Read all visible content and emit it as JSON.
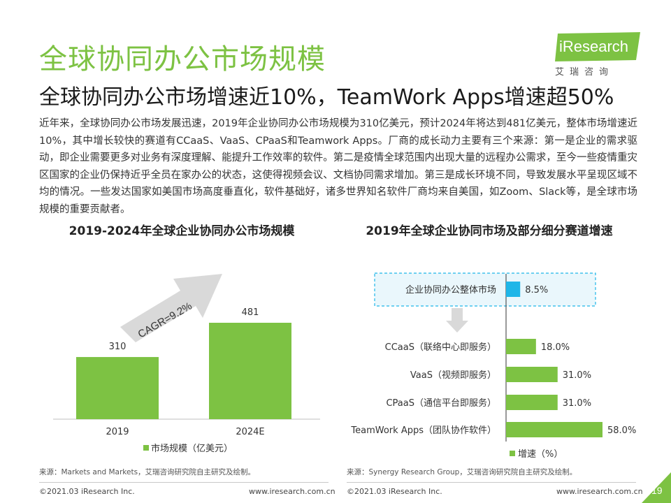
{
  "header": {
    "title": "全球协同办公市场规模",
    "subtitle": "全球协同办公市场增速近10%，TeamWork Apps增速超50%",
    "logo_text": "iResearch",
    "logo_sub": "艾瑞咨询"
  },
  "body_text": "近年来，全球协同办公市场发展迅速，2019年企业协同办公市场规模为310亿美元，预计2024年将达到481亿美元，整体市场增速近10%，其中增长较快的赛道有CCaaS、VaaS、CPaaS和Teamwork Apps。厂商的成长动力主要有三个来源：第一是企业的需求驱动，即企业需要更多对业务有深度理解、能提升工作效率的软件。第二是疫情全球范围内出现大量的远程办公需求，至今一些疫情重灾区国家的企业仍保持近乎全员在家办公的状态，这使得视频会议、文档协同需求增加。第三是成长环境不同，导致发展水平呈现区域不均的情况。一些发达国家如美国市场高度垂直化，软件基础好，诸多世界知名软件厂商均来自美国，如Zoom、Slack等，是全球市场规模的重要贡献者。",
  "colors": {
    "green": "#7dc243",
    "cyan": "#1fb6e8",
    "arrow_gray": "#d9d9d9",
    "page_badge": "#7dc243"
  },
  "chart_data": [
    {
      "type": "bar",
      "title": "2019-2024年全球企业协同办公市场规模",
      "categories": [
        "2019",
        "2024E"
      ],
      "series": [
        {
          "name": "市场规模（亿美元）",
          "values": [
            310,
            481
          ]
        }
      ],
      "value_labels": [
        "310",
        "481"
      ],
      "annotation": "CAGR=9.2%",
      "legend_position": "bottom",
      "grid": false
    },
    {
      "type": "bar",
      "orientation": "horizontal",
      "title": "2019年全球企业协同市场及部分细分赛道增速",
      "categories": [
        "企业协同办公整体市场",
        "CCaaS（联络中心即服务）",
        "VaaS（视频即服务）",
        "CPaaS（通信平台即服务）",
        "TeamWork Apps（团队协作软件）"
      ],
      "series": [
        {
          "name": "增速（%）",
          "values": [
            8.5,
            18.0,
            31.0,
            31.0,
            58.0
          ]
        }
      ],
      "value_labels": [
        "8.5%",
        "18.0%",
        "31.0%",
        "31.0%",
        "58.0%"
      ],
      "legend_position": "bottom",
      "grid": false
    }
  ],
  "sources": {
    "left": "来源：Markets and Markets，艾瑞咨询研究院自主研究及绘制。",
    "right": "来源：Synergy Research Group，艾瑞咨询研究院自主研究及绘制。"
  },
  "footer": {
    "copyright_left": "©2021.03 iResearch Inc.",
    "url_left": "www.iresearch.com.cn",
    "copyright_right": "©2021.03 iResearch Inc.",
    "url_right": "www.iresearch.com.cn",
    "page_number": "19"
  }
}
